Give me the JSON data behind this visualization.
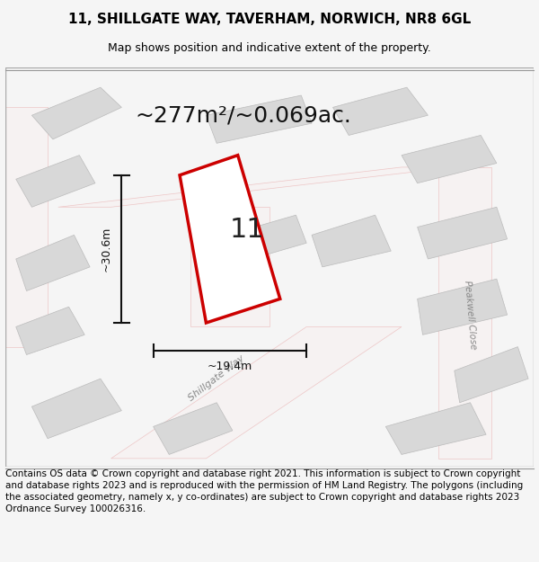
{
  "title": "11, SHILLGATE WAY, TAVERHAM, NORWICH, NR8 6GL",
  "subtitle": "Map shows position and indicative extent of the property.",
  "area_text": "~277m²/~0.069ac.",
  "property_number": "11",
  "dim_height": "~30.6m",
  "dim_width": "~19.4m",
  "footer": "Contains OS data © Crown copyright and database right 2021. This information is subject to Crown copyright and database rights 2023 and is reproduced with the permission of HM Land Registry. The polygons (including the associated geometry, namely x, y co-ordinates) are subject to Crown copyright and database rights 2023 Ordnance Survey 100026316.",
  "bg_color": "#f5f5f5",
  "map_bg": "#ffffff",
  "road_fill": "#f0f0f0",
  "road_stroke": "#e8a8a8",
  "building_fill": "#d8d8d8",
  "building_stroke": "#cccccc",
  "plot_stroke": "#cc0000",
  "plot_fill": "#ffffff",
  "dim_color": "#111111",
  "street_label_color": "#888888",
  "title_fontsize": 11,
  "subtitle_fontsize": 9,
  "area_fontsize": 18,
  "number_fontsize": 22,
  "footer_fontsize": 7.5
}
